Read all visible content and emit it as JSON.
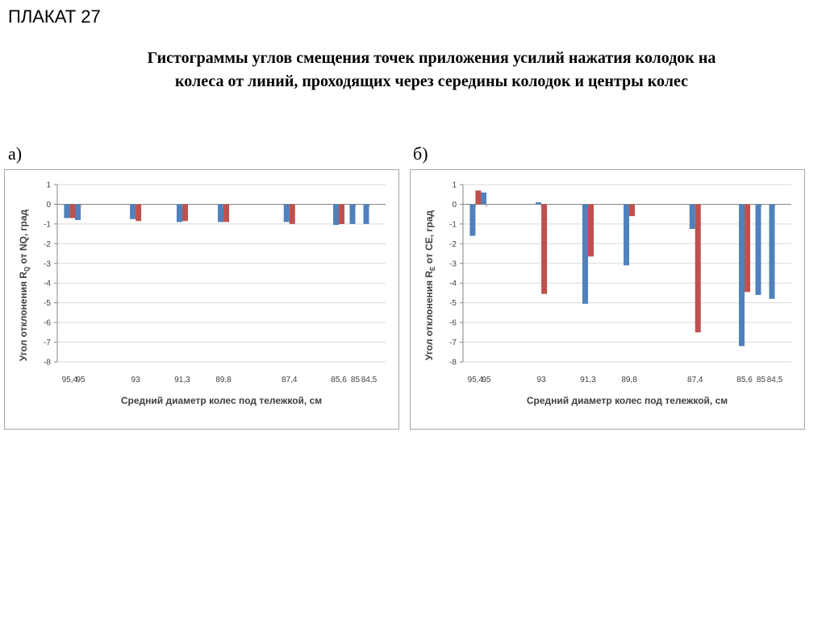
{
  "header": {
    "poster_label": "ПЛАКАТ 27",
    "title": "Гистограммы углов смещения точек приложения усилий нажатия колодок на колеса от линий, проходящих через середины колодок и центры колес"
  },
  "colors": {
    "series1": "#4f81bd",
    "series2": "#c0504d",
    "grid": "#d9d9d9",
    "axis": "#868686"
  },
  "chart_data": [
    {
      "panel_label": "а)",
      "type": "bar",
      "xlabel": "Средний диаметр колес под тележкой, см",
      "ylabel_parts": [
        "Угол отклонения R",
        "Q",
        " от NQ, град"
      ],
      "ylim": [
        -8,
        1
      ],
      "yticks": [
        1,
        0,
        -1,
        -2,
        -3,
        -4,
        -5,
        -6,
        -7,
        -8
      ],
      "grid": true,
      "categories": [
        "95,4",
        "95",
        "93",
        "91,3",
        "89,8",
        "87,4",
        "85,6",
        "85",
        "84,5"
      ],
      "category_x": [
        95.4,
        95,
        93,
        91.3,
        89.8,
        87.4,
        85.6,
        85,
        84.5
      ],
      "series": [
        {
          "values": [
            -0.7,
            -0.8,
            -0.75,
            -0.9,
            -0.9,
            -0.9,
            -1.05,
            -1.0,
            -1.0
          ]
        },
        {
          "values": [
            -0.7,
            null,
            -0.85,
            -0.85,
            -0.9,
            -1.0,
            -1.0,
            null,
            null
          ]
        }
      ]
    },
    {
      "panel_label": "б)",
      "type": "bar",
      "xlabel": "Средний диаметр колес под тележкой, см",
      "ylabel_parts": [
        "Угол отклонения R",
        "E",
        " от CE, град"
      ],
      "ylim": [
        -8,
        1
      ],
      "yticks": [
        1,
        0,
        -1,
        -2,
        -3,
        -4,
        -5,
        -6,
        -7,
        -8
      ],
      "grid": true,
      "categories": [
        "95,4",
        "95",
        "93",
        "91,3",
        "89,8",
        "87,4",
        "85,6",
        "85",
        "84,5"
      ],
      "category_x": [
        95.4,
        95,
        93,
        91.3,
        89.8,
        87.4,
        85.6,
        85,
        84.5
      ],
      "series": [
        {
          "values": [
            -1.6,
            0.6,
            0.1,
            -5.05,
            -3.1,
            -1.25,
            -7.2,
            -4.6,
            -4.8
          ]
        },
        {
          "values": [
            0.7,
            null,
            -4.55,
            -2.65,
            -0.6,
            -6.5,
            -4.45,
            null,
            null
          ]
        }
      ]
    }
  ]
}
